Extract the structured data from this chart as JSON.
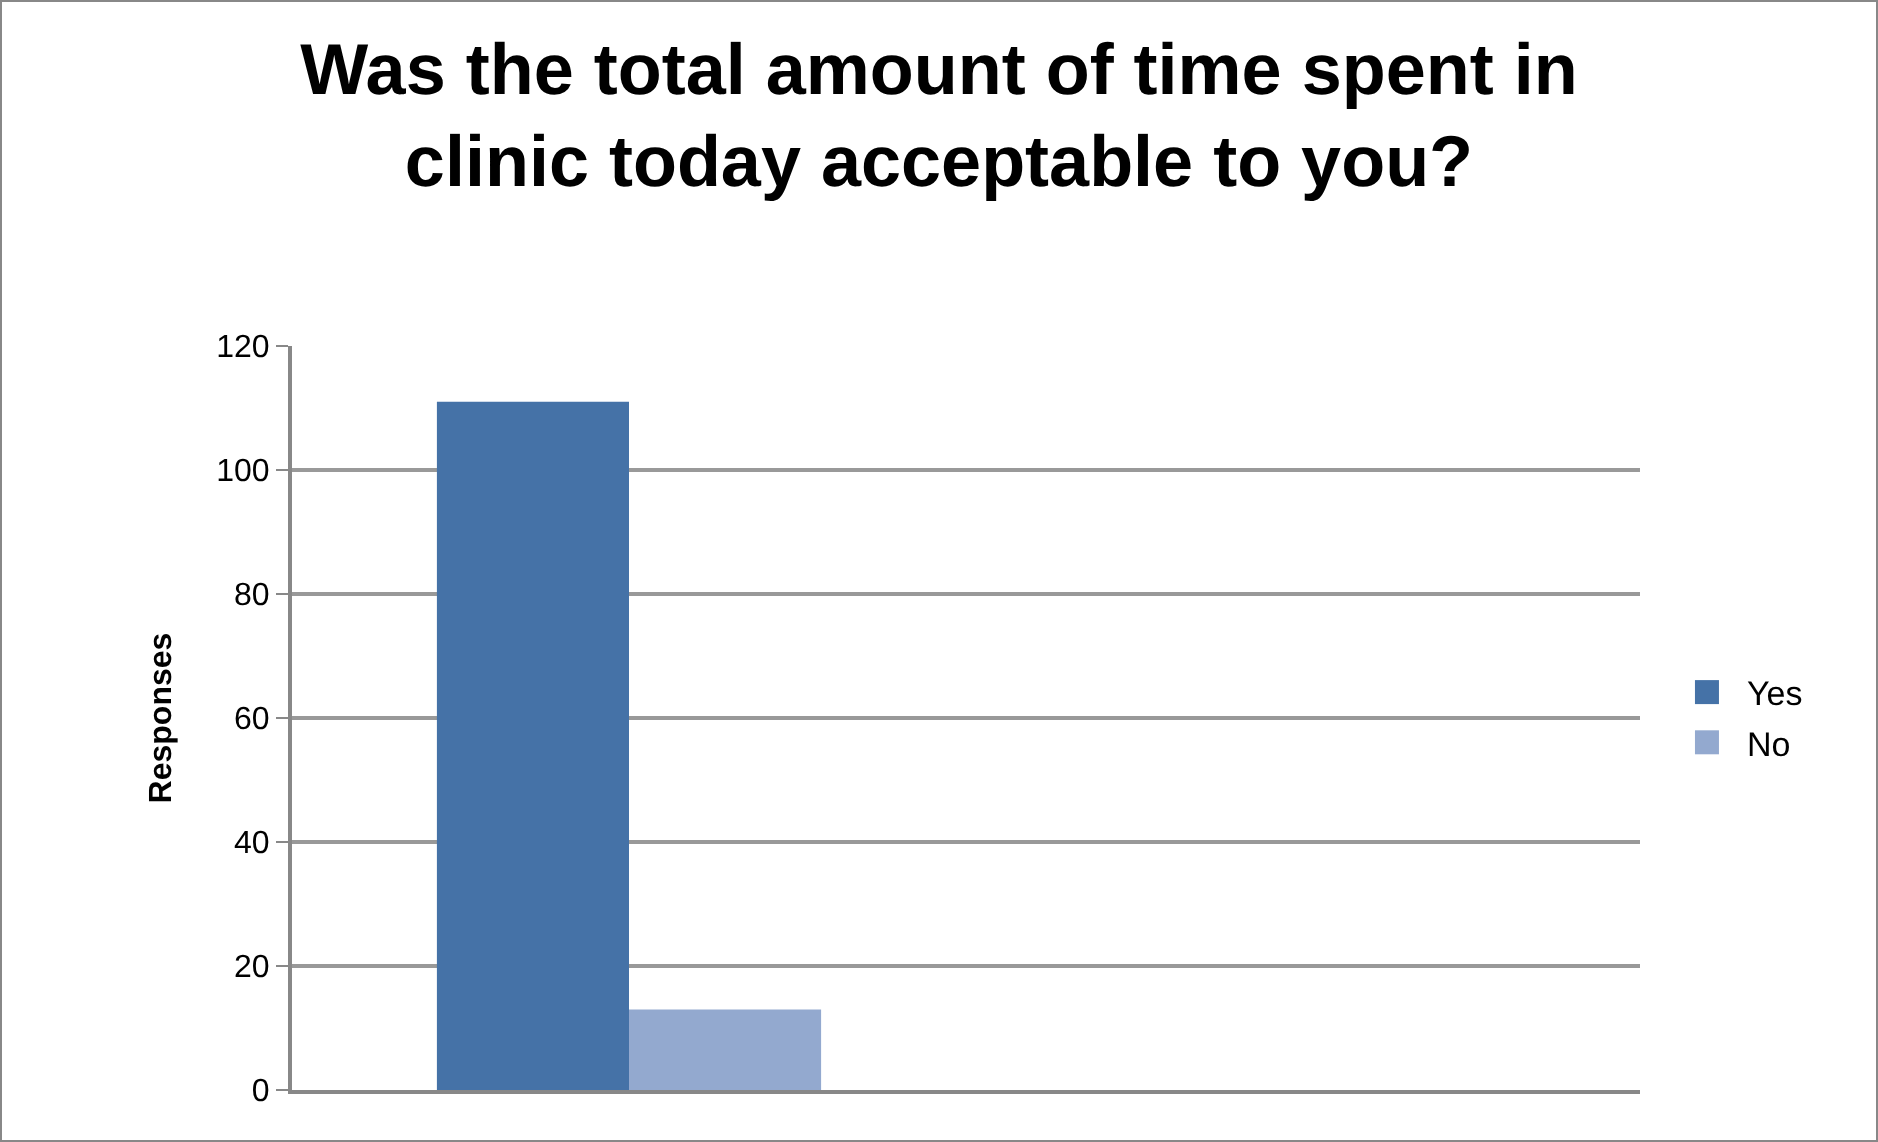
{
  "chart_data": {
    "type": "bar",
    "title": "Was the total amount of time spent in clinic today acceptable to you?",
    "ylabel": "Responses",
    "categories": [
      null,
      null
    ],
    "series": [
      {
        "name": "Yes",
        "color": "#4572a7",
        "values": [
          111,
          null
        ]
      },
      {
        "name": "No",
        "color": "#93a9cf",
        "values": [
          13,
          null
        ]
      }
    ],
    "ylim": [
      0,
      120
    ],
    "yticks": [
      0,
      20,
      40,
      60,
      80,
      100,
      120
    ],
    "grid": "y",
    "legend": "right"
  }
}
